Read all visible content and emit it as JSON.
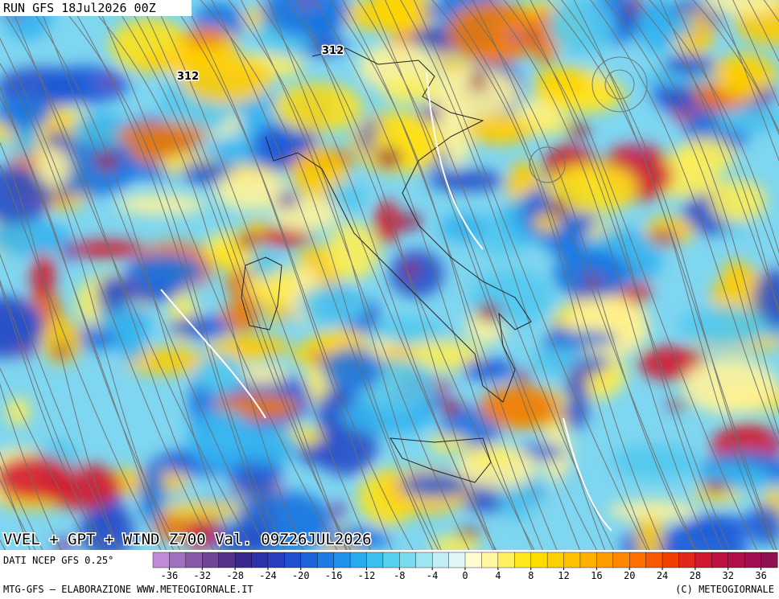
{
  "header": {
    "title": "RUN GFS 18Jul2026 00Z"
  },
  "contour_labels": [
    "312",
    "312"
  ],
  "footer": {
    "caption": "VVEL + GPT + WIND Z700 Val. 09Z26JUL2026",
    "source": "DATI NCEP GFS 0.25°",
    "credit": "MTG-GFS – ELABORAZIONE WWW.METEOGIORNALE.IT",
    "copyright": "(C) METEOGIORNALE"
  },
  "colorbar": {
    "ticks": [
      -36,
      -32,
      -28,
      -24,
      -20,
      -16,
      -12,
      -8,
      -4,
      0,
      4,
      8,
      12,
      16,
      20,
      24,
      28,
      32,
      36
    ],
    "colors": [
      "#c08ad8",
      "#a070c0",
      "#8a5aa8",
      "#6e4496",
      "#55328a",
      "#3a2890",
      "#2e32a8",
      "#2840c0",
      "#2050d0",
      "#1c64dc",
      "#1c7ce4",
      "#2094ec",
      "#28aaf0",
      "#3cc0f0",
      "#58d0f0",
      "#78dcf0",
      "#9ce6f2",
      "#c0eef4",
      "#e0f6f8",
      "#fffcd0",
      "#fff8a0",
      "#fff060",
      "#ffe820",
      "#ffdc00",
      "#ffd000",
      "#ffc000",
      "#ffb000",
      "#ff9c00",
      "#ff8800",
      "#ff7000",
      "#f85800",
      "#f04000",
      "#e02818",
      "#d01830",
      "#c01040",
      "#b0104a",
      "#a01050",
      "#901050"
    ]
  }
}
